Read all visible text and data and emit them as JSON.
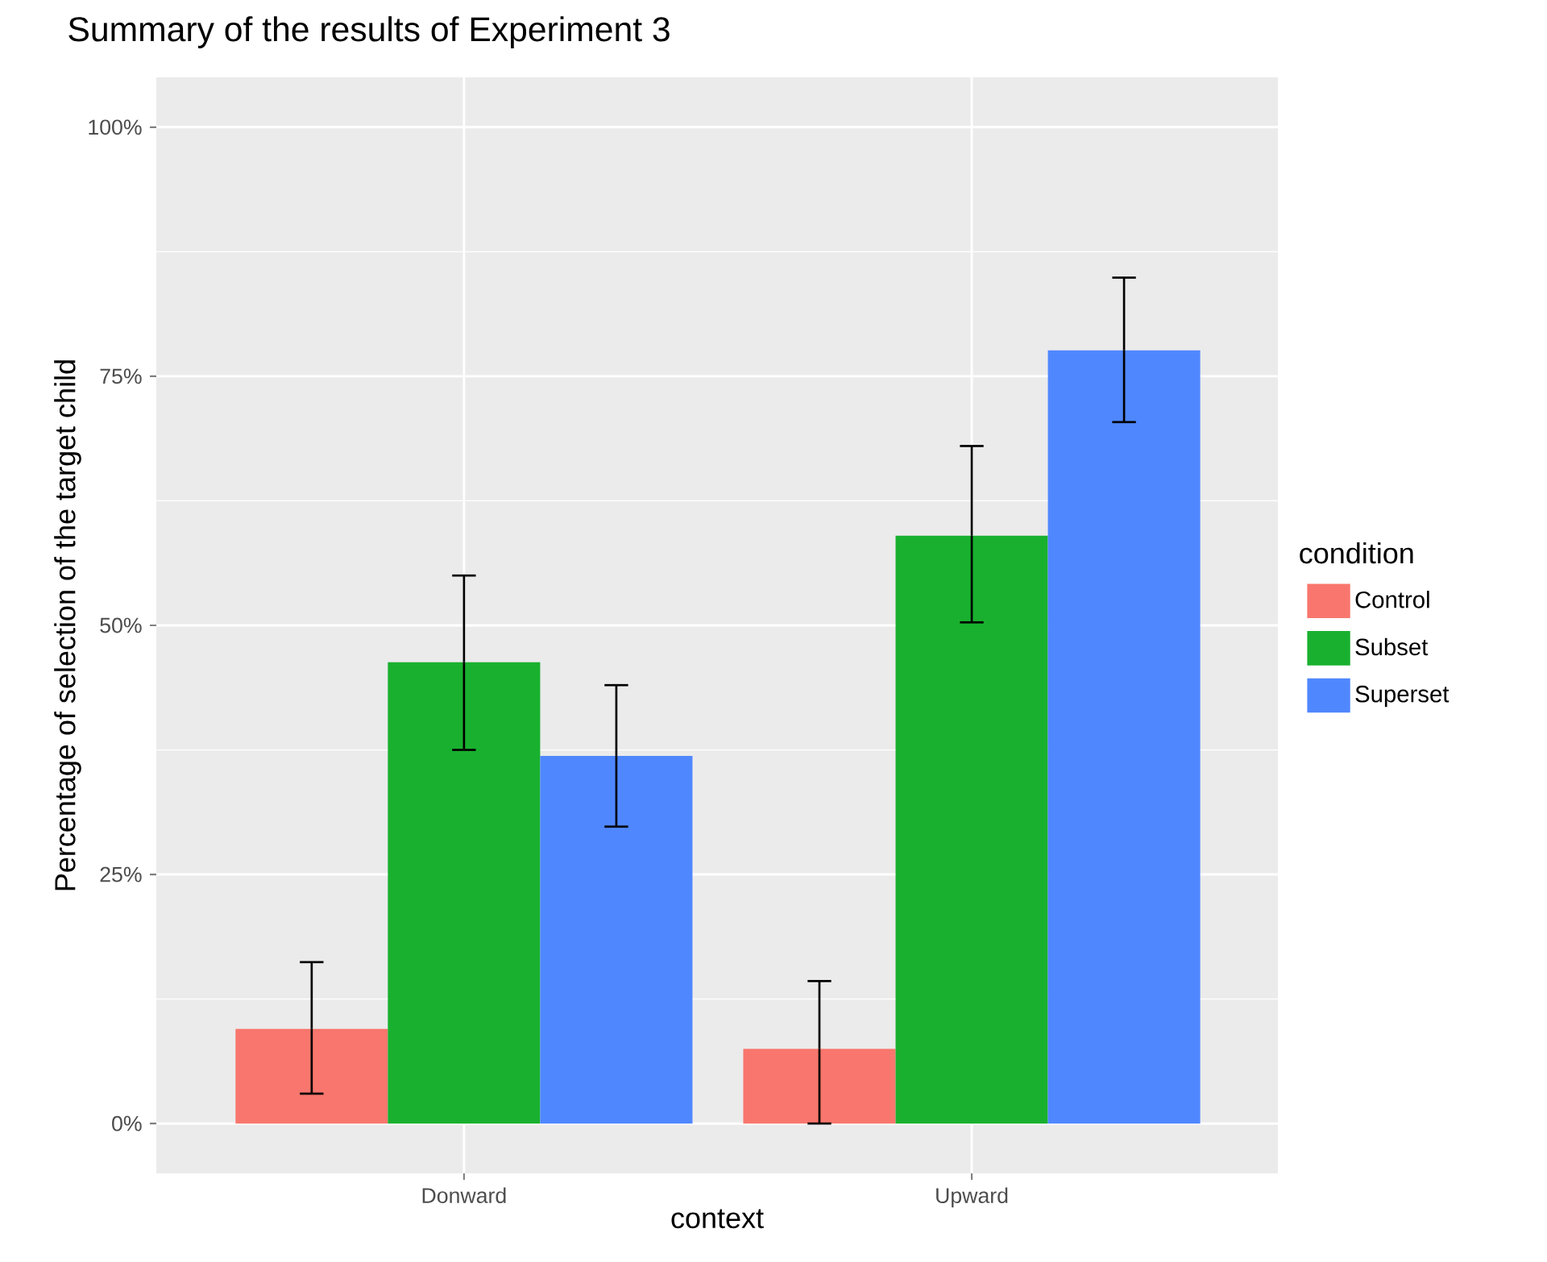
{
  "chart_data": {
    "type": "bar",
    "title": "Summary of the results of Experiment 3",
    "xlabel": "context",
    "ylabel": "Percentage of selection of the target child",
    "legend_title": "condition",
    "categories": [
      "Donward",
      "Upward"
    ],
    "series": [
      {
        "name": "Control",
        "color": "#f8766d",
        "values": [
          9.5,
          7.5
        ],
        "errors": [
          [
            3.0,
            16.2
          ],
          [
            0,
            14.3
          ]
        ]
      },
      {
        "name": "Subset",
        "color": "#19b02f",
        "values": [
          46.3,
          59.0
        ],
        "errors": [
          [
            37.5,
            55.0
          ],
          [
            50.3,
            68.0
          ]
        ]
      },
      {
        "name": "Superset",
        "color": "#4f87ff",
        "values": [
          36.9,
          77.6
        ],
        "errors": [
          [
            29.8,
            44.0
          ],
          [
            70.4,
            84.9
          ]
        ]
      }
    ],
    "ylim": [
      -5,
      105
    ],
    "yticks": [
      {
        "value": 0,
        "label": "0%"
      },
      {
        "value": 25,
        "label": "25%"
      },
      {
        "value": 50,
        "label": "50%"
      },
      {
        "value": 75,
        "label": "75%"
      },
      {
        "value": 100,
        "label": "100%"
      }
    ],
    "grid": true,
    "legend": "right"
  }
}
